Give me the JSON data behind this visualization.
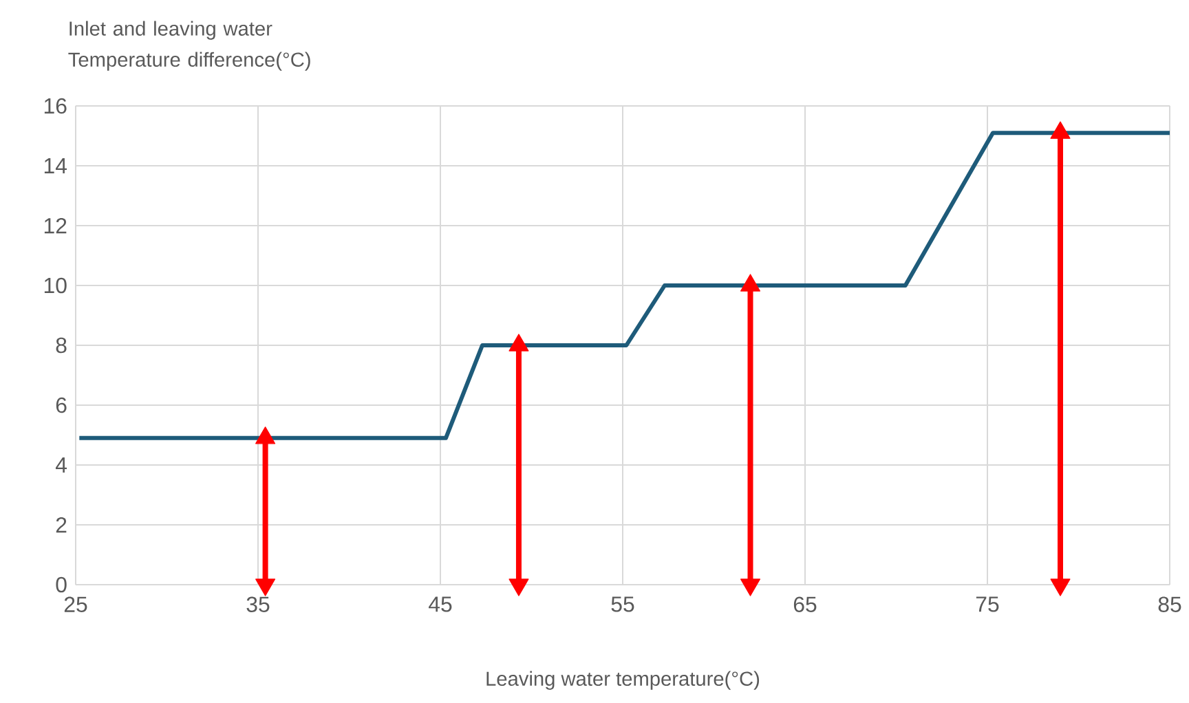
{
  "chart_data": {
    "type": "line",
    "xlabel": "Leaving water temperature(°C)",
    "ylabel": "Inlet and leaving water Temperature difference(°C)",
    "xlim": [
      25,
      85
    ],
    "ylim": [
      0,
      16
    ],
    "xticks": [
      25,
      35,
      45,
      55,
      65,
      75,
      85
    ],
    "yticks": [
      0,
      2,
      4,
      6,
      8,
      10,
      12,
      14,
      16
    ],
    "grid": true,
    "line_style": "solid",
    "series": [
      {
        "color": "#1e5b7a",
        "x": [
          25.2,
          45.3,
          47.3,
          55.2,
          57.3,
          70.5,
          75.3,
          85
        ],
        "values": [
          4.9,
          4.9,
          8,
          8,
          10,
          10,
          15.1,
          15.1
        ]
      },
      {
        "color": "#ff0000",
        "marker": "triangle",
        "x": [
          35.4,
          35.4
        ],
        "values": [
          0,
          4.9
        ]
      },
      {
        "color": "#ff0000",
        "marker": "triangle",
        "x": [
          49.3,
          49.3
        ],
        "values": [
          0,
          8
        ]
      },
      {
        "color": "#ff0000",
        "marker": "triangle",
        "x": [
          62,
          62
        ],
        "values": [
          0,
          10
        ]
      },
      {
        "color": "#ff0000",
        "marker": "triangle",
        "x": [
          79,
          79
        ],
        "values": [
          0,
          15.1
        ]
      }
    ]
  }
}
